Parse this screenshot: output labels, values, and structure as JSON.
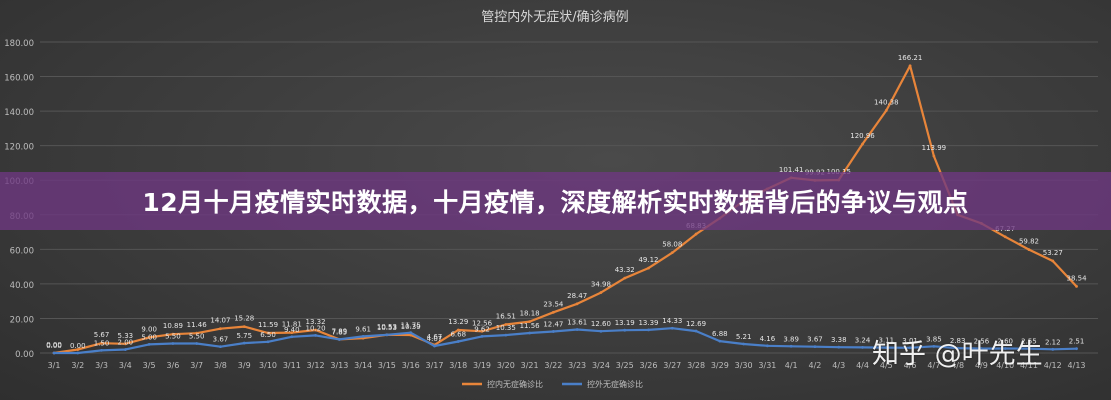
{
  "overlay": {
    "headline": "12月十月疫情实时数据，十月疫情，深度解析实时数据背后的争议与观点",
    "watermark": "知乎 @叶先生"
  },
  "colors": {
    "orange": "#e8853a",
    "blue": "#4a7fc8",
    "axis_text": "#bdbdbd",
    "grid": "#555555"
  },
  "chart_data": {
    "type": "line",
    "title": "管控内外无症状/确诊病例",
    "ylim": [
      0,
      180
    ],
    "yticks": [
      "0.00",
      "20.00",
      "40.00",
      "60.00",
      "80.00",
      "100.00",
      "120.00",
      "140.00",
      "160.00",
      "180.00"
    ],
    "grid": true,
    "legend_position": "bottom",
    "categories": [
      "3/1",
      "3/2",
      "3/3",
      "3/4",
      "3/5",
      "3/6",
      "3/7",
      "3/8",
      "3/9",
      "3/10",
      "3/11",
      "3/12",
      "3/13",
      "3/14",
      "3/15",
      "3/16",
      "3/17",
      "3/18",
      "3/19",
      "3/20",
      "3/21",
      "3/22",
      "3/23",
      "3/24",
      "3/25",
      "3/26",
      "3/27",
      "3/28",
      "3/29",
      "3/30",
      "3/31",
      "4/1",
      "4/2",
      "4/3",
      "4/4",
      "4/5",
      "4/6",
      "4/7",
      "4/8",
      "4/9",
      "4/10",
      "4/11",
      "4/12",
      "4/13"
    ],
    "series": [
      {
        "name": "控内无症确诊比",
        "color": "#e8853a",
        "values": [
          0.0,
          2.0,
          5.67,
          5.33,
          9.0,
          10.89,
          11.46,
          14.07,
          15.28,
          11.59,
          11.81,
          13.32,
          7.89,
          8.6,
          10.53,
          10.39,
          4.67,
          13.29,
          12.56,
          16.51,
          18.18,
          23.54,
          28.47,
          34.98,
          43.32,
          49.12,
          58.08,
          68.83,
          78.0,
          88.0,
          95.0,
          101.41,
          99.92,
          100.15,
          120.96,
          140.38,
          166.21,
          113.99,
          80.0,
          75.0,
          67.27,
          59.82,
          53.27,
          38.54
        ],
        "labels": [
          "0.00",
          "",
          "5.67",
          "5.33",
          "9.00",
          "10.89",
          "11.46",
          "14.07",
          "15.28",
          "11.59",
          "11.81",
          "13.32",
          "7.89",
          "",
          "10.53",
          "10.39",
          "4.67",
          "13.29",
          "12.56",
          "16.51",
          "18.18",
          "23.54",
          "28.47",
          "34.98",
          "43.32",
          "49.12",
          "58.08",
          "68.83",
          "",
          "",
          "",
          "101.41",
          "99.92",
          "100.15",
          "120.96",
          "140.38",
          "166.21",
          "113.99",
          "",
          "",
          "67.27",
          "59.82",
          "53.27",
          "38.54"
        ]
      },
      {
        "name": "控外无症确诊比",
        "color": "#4a7fc8",
        "values": [
          0.0,
          0.0,
          1.5,
          2.0,
          5.0,
          5.5,
          5.5,
          3.67,
          5.75,
          6.5,
          9.4,
          10.2,
          7.85,
          9.61,
          10.53,
          11.75,
          4.07,
          6.68,
          9.62,
          10.35,
          11.56,
          12.47,
          13.61,
          12.6,
          13.19,
          13.39,
          14.33,
          12.69,
          6.88,
          5.21,
          4.16,
          3.89,
          3.67,
          3.38,
          3.24,
          3.11,
          3.01,
          3.85,
          2.83,
          2.56,
          2.6,
          2.55,
          2.12,
          2.51
        ],
        "labels": [
          "0.00",
          "0.00",
          "1.50",
          "2.00",
          "5.00",
          "5.50",
          "5.50",
          "3.67",
          "5.75",
          "6.50",
          "9.40",
          "10.20",
          "7.85",
          "9.61",
          "10.53",
          "11.75",
          "4.07",
          "6.68",
          "9.62",
          "10.35",
          "11.56",
          "12.47",
          "13.61",
          "12.60",
          "13.19",
          "13.39",
          "14.33",
          "12.69",
          "6.88",
          "5.21",
          "4.16",
          "3.89",
          "3.67",
          "3.38",
          "3.24",
          "3.11",
          "3.01",
          "3.85",
          "2.83",
          "2.56",
          "2.60",
          "2.55",
          "2.12",
          "2.51"
        ]
      }
    ]
  }
}
